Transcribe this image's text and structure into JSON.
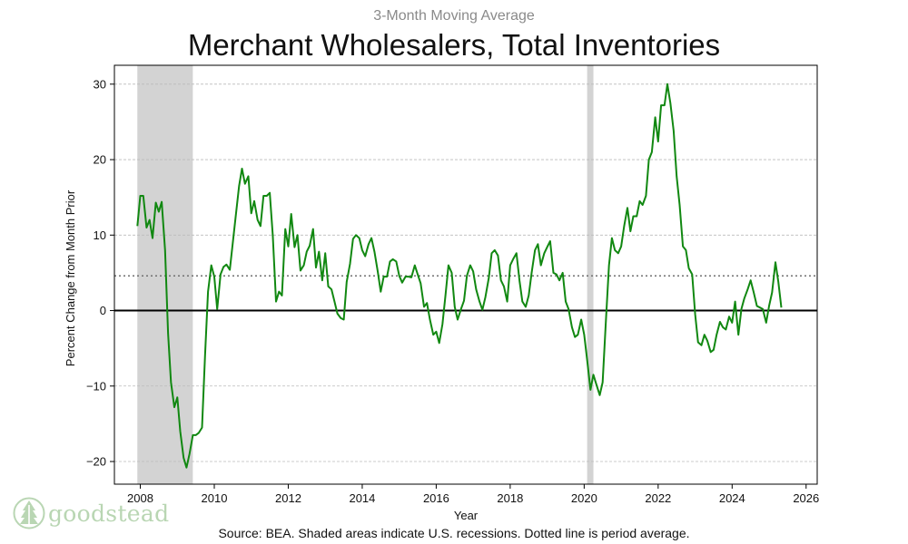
{
  "header": {
    "subtitle": "3-Month Moving Average",
    "title": "Merchant Wholesalers, Total Inventories"
  },
  "footer": {
    "source": "Source: BEA. Shaded areas indicate U.S. recessions. Dotted line is period average."
  },
  "logo": {
    "text": "goodstead",
    "icon": "tree-icon"
  },
  "colors": {
    "line": "#118811",
    "recession": "#d3d3d3",
    "zero": "#000000",
    "average": "#707070",
    "grid": "#bbbbbb"
  },
  "chart_data": {
    "type": "line",
    "title": "Merchant Wholesalers, Total Inventories",
    "subtitle": "3-Month Moving Average",
    "xlabel": "Year",
    "ylabel": "Percent Change from Month Prior",
    "xlim": [
      2007.3,
      2026.3
    ],
    "ylim": [
      -23,
      32.5
    ],
    "x_ticks": [
      2008,
      2010,
      2012,
      2014,
      2016,
      2018,
      2020,
      2022,
      2024,
      2026
    ],
    "y_ticks": [
      -20,
      -10,
      0,
      10,
      20,
      30
    ],
    "y_tick_labels": [
      "−20",
      "−10",
      "0",
      "10",
      "20",
      "30"
    ],
    "grid": "horizontal dashed",
    "average": 4.6,
    "recessions": [
      {
        "start": 2007.92,
        "end": 2009.42
      },
      {
        "start": 2020.08,
        "end": 2020.25
      }
    ],
    "series": [
      {
        "x": [
          2007.92,
          2008.0,
          2008.08,
          2008.17,
          2008.25,
          2008.33,
          2008.42,
          2008.5,
          2008.58,
          2008.67,
          2008.75,
          2008.83,
          2008.92,
          2009.0,
          2009.08,
          2009.17,
          2009.25,
          2009.33,
          2009.42,
          2009.5,
          2009.58,
          2009.67,
          2009.75,
          2009.83,
          2009.92,
          2010.0,
          2010.08,
          2010.17,
          2010.25,
          2010.33,
          2010.42,
          2010.5,
          2010.58,
          2010.67,
          2010.75,
          2010.83,
          2010.92,
          2011.0,
          2011.08,
          2011.17,
          2011.25,
          2011.33,
          2011.42,
          2011.5,
          2011.58,
          2011.67,
          2011.75,
          2011.83,
          2011.92,
          2012.0,
          2012.08,
          2012.17,
          2012.25,
          2012.33,
          2012.42,
          2012.5,
          2012.58,
          2012.67,
          2012.75,
          2012.83,
          2012.92,
          2013.0,
          2013.08,
          2013.17,
          2013.25,
          2013.33,
          2013.42,
          2013.5,
          2013.58,
          2013.67,
          2013.75,
          2013.83,
          2013.92,
          2014.0,
          2014.08,
          2014.17,
          2014.25,
          2014.33,
          2014.42,
          2014.5,
          2014.58,
          2014.67,
          2014.75,
          2014.83,
          2014.92,
          2015.0,
          2015.08,
          2015.17,
          2015.25,
          2015.33,
          2015.42,
          2015.5,
          2015.58,
          2015.67,
          2015.75,
          2015.83,
          2015.92,
          2016.0,
          2016.08,
          2016.17,
          2016.25,
          2016.33,
          2016.42,
          2016.5,
          2016.58,
          2016.67,
          2016.75,
          2016.83,
          2016.92,
          2017.0,
          2017.08,
          2017.17,
          2017.25,
          2017.33,
          2017.42,
          2017.5,
          2017.58,
          2017.67,
          2017.75,
          2017.83,
          2017.92,
          2018.0,
          2018.08,
          2018.17,
          2018.25,
          2018.33,
          2018.42,
          2018.5,
          2018.58,
          2018.67,
          2018.75,
          2018.83,
          2018.92,
          2019.0,
          2019.08,
          2019.17,
          2019.25,
          2019.33,
          2019.42,
          2019.5,
          2019.58,
          2019.67,
          2019.75,
          2019.83,
          2019.92,
          2020.0,
          2020.08,
          2020.17,
          2020.25,
          2020.33,
          2020.42,
          2020.5,
          2020.58,
          2020.67,
          2020.75,
          2020.83,
          2020.92,
          2021.0,
          2021.08,
          2021.17,
          2021.25,
          2021.33,
          2021.42,
          2021.5,
          2021.58,
          2021.67,
          2021.75,
          2021.83,
          2021.92,
          2022.0,
          2022.08,
          2022.17,
          2022.25,
          2022.33,
          2022.42,
          2022.5,
          2022.58,
          2022.67,
          2022.75,
          2022.83,
          2022.92,
          2023.0,
          2023.08,
          2023.17,
          2023.25,
          2023.33,
          2023.42,
          2023.5,
          2023.58,
          2023.67,
          2023.75,
          2023.83,
          2023.92,
          2024.0,
          2024.08,
          2024.17,
          2024.25,
          2024.33,
          2024.42,
          2024.5,
          2024.58,
          2024.67,
          2024.75,
          2024.83,
          2024.92,
          2025.0,
          2025.08,
          2025.17,
          2025.25,
          2025.33
        ],
        "values": [
          11.2,
          15.2,
          15.2,
          11.0,
          12.0,
          9.6,
          14.3,
          13.1,
          14.4,
          8.0,
          -3.0,
          -9.5,
          -12.8,
          -11.5,
          -16.0,
          -19.5,
          -20.8,
          -19.0,
          -16.5,
          -16.5,
          -16.2,
          -15.5,
          -6.0,
          2.5,
          6.0,
          4.5,
          0.2,
          4.8,
          5.8,
          6.1,
          5.4,
          9.0,
          12.5,
          16.5,
          18.8,
          16.8,
          17.8,
          12.9,
          14.5,
          12.0,
          11.2,
          15.2,
          15.2,
          15.6,
          10.0,
          1.2,
          2.5,
          2.0,
          10.8,
          8.5,
          12.8,
          8.4,
          10.0,
          5.3,
          6.0,
          7.8,
          8.6,
          10.8,
          5.7,
          7.8,
          4.0,
          7.6,
          3.2,
          2.8,
          1.2,
          -0.4,
          -1.0,
          -1.2,
          3.8,
          6.2,
          9.5,
          10.0,
          9.6,
          8.0,
          7.2,
          8.8,
          9.6,
          7.8,
          5.2,
          2.5,
          4.5,
          4.5,
          6.5,
          6.8,
          6.5,
          4.6,
          3.7,
          4.5,
          4.5,
          4.4,
          6.0,
          4.8,
          3.6,
          0.5,
          1.0,
          -1.2,
          -3.2,
          -2.8,
          -4.3,
          -1.8,
          2.0,
          6.0,
          5.0,
          0.5,
          -1.2,
          0.2,
          1.3,
          4.6,
          6.0,
          5.2,
          2.8,
          1.2,
          0.1,
          1.8,
          4.3,
          7.6,
          8.0,
          7.3,
          4.0,
          3.2,
          1.2,
          6.0,
          6.8,
          7.6,
          4.0,
          1.2,
          0.5,
          2.0,
          5.0,
          8.0,
          8.8,
          6.0,
          7.6,
          8.4,
          9.2,
          5.0,
          4.8,
          4.0,
          5.0,
          1.2,
          0.2,
          -2.2,
          -3.5,
          -3.2,
          -1.2,
          -3.2,
          -6.5,
          -10.5,
          -8.5,
          -9.8,
          -11.2,
          -9.5,
          -2.0,
          6.0,
          9.6,
          8.0,
          7.6,
          8.5,
          11.2,
          13.6,
          10.5,
          12.5,
          12.5,
          14.5,
          14.0,
          15.2,
          20.0,
          21.0,
          25.6,
          22.4,
          27.2,
          27.2,
          30.0,
          27.5,
          23.8,
          17.8,
          14.0,
          8.5,
          8.0,
          5.6,
          4.8,
          -0.5,
          -4.2,
          -4.6,
          -3.2,
          -4.0,
          -5.5,
          -5.2,
          -3.2,
          -1.5,
          -2.2,
          -2.5,
          -0.8,
          -1.6,
          1.2,
          -3.2,
          0.2,
          1.6,
          2.8,
          4.0,
          2.5,
          0.6,
          0.4,
          0.2,
          -1.6,
          0.6,
          2.4,
          6.4,
          3.8,
          0.4
        ]
      }
    ]
  }
}
